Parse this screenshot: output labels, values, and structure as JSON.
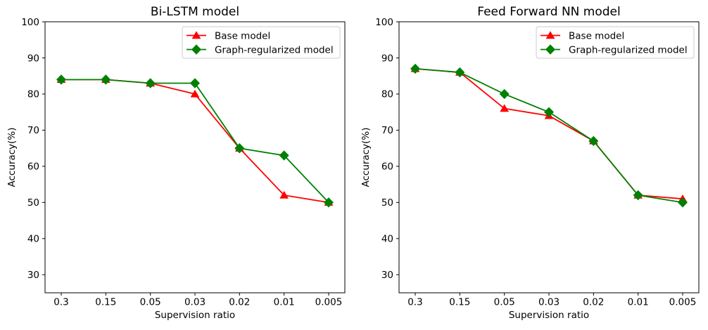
{
  "figure": {
    "background": "#ffffff",
    "text_color": "#000000",
    "axis_color": "#000000",
    "legend_border_color": "#cccccc",
    "legend_fill": "#ffffff"
  },
  "chart_data": [
    {
      "type": "line",
      "title": "Bi-LSTM model",
      "xlabel": "Supervision ratio",
      "ylabel": "Accuracy(%)",
      "categories": [
        "0.3",
        "0.15",
        "0.05",
        "0.03",
        "0.02",
        "0.01",
        "0.005"
      ],
      "yticks": [
        30,
        40,
        50,
        60,
        70,
        80,
        90,
        100
      ],
      "ylim": [
        25,
        100
      ],
      "grid": false,
      "legend_position": "upper right",
      "series": [
        {
          "name": "Base model",
          "color": "#ff0000",
          "marker": "triangle-up",
          "values": [
            84,
            84,
            83,
            80,
            65,
            52,
            50
          ]
        },
        {
          "name": "Graph-regularized model",
          "color": "#008000",
          "marker": "diamond",
          "values": [
            84,
            84,
            83,
            83,
            65,
            63,
            50
          ]
        }
      ]
    },
    {
      "type": "line",
      "title": "Feed Forward NN model",
      "xlabel": "Supervision ratio",
      "ylabel": "Accuracy(%)",
      "categories": [
        "0.3",
        "0.15",
        "0.05",
        "0.03",
        "0.02",
        "0.01",
        "0.005"
      ],
      "yticks": [
        30,
        40,
        50,
        60,
        70,
        80,
        90,
        100
      ],
      "ylim": [
        25,
        100
      ],
      "grid": false,
      "legend_position": "upper right",
      "series": [
        {
          "name": "Base model",
          "color": "#ff0000",
          "marker": "triangle-up",
          "values": [
            87,
            86,
            76,
            74,
            67,
            52,
            51
          ]
        },
        {
          "name": "Graph-regularized model",
          "color": "#008000",
          "marker": "diamond",
          "values": [
            87,
            86,
            80,
            75,
            67,
            52,
            50
          ]
        }
      ]
    }
  ]
}
